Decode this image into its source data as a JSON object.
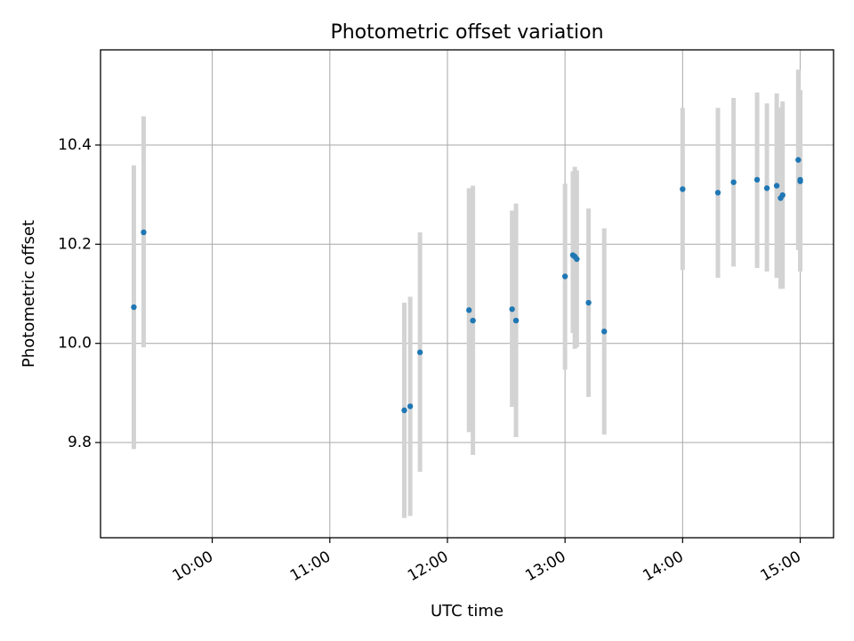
{
  "chart_data": {
    "type": "scatter",
    "title": "Photometric offset variation",
    "xlabel": "UTC time",
    "ylabel": "Photometric offset",
    "xlim": [
      "09:03",
      "15:17"
    ],
    "ylim": [
      9.608,
      10.592
    ],
    "x_ticks": [
      "10:00",
      "11:00",
      "12:00",
      "13:00",
      "14:00",
      "15:00"
    ],
    "y_ticks": [
      9.8,
      10.0,
      10.2,
      10.4
    ],
    "grid": true,
    "x_tick_rotation": "30°",
    "points": [
      {
        "x": "09:20",
        "y": 10.073,
        "lo": 9.787,
        "hi": 10.359
      },
      {
        "x": "09:25",
        "y": 10.224,
        "lo": 9.992,
        "hi": 10.458
      },
      {
        "x": "11:38",
        "y": 9.865,
        "lo": 9.648,
        "hi": 10.082
      },
      {
        "x": "11:41",
        "y": 9.873,
        "lo": 9.652,
        "hi": 10.094
      },
      {
        "x": "11:46",
        "y": 9.982,
        "lo": 9.741,
        "hi": 10.224
      },
      {
        "x": "12:11",
        "y": 10.067,
        "lo": 9.821,
        "hi": 10.313
      },
      {
        "x": "12:13",
        "y": 10.046,
        "lo": 9.775,
        "hi": 10.318
      },
      {
        "x": "12:33",
        "y": 10.069,
        "lo": 9.872,
        "hi": 10.268
      },
      {
        "x": "12:35",
        "y": 10.046,
        "lo": 9.811,
        "hi": 10.282
      },
      {
        "x": "13:00",
        "y": 10.135,
        "lo": 9.947,
        "hi": 10.322
      },
      {
        "x": "13:04",
        "y": 10.178,
        "lo": 10.021,
        "hi": 10.347
      },
      {
        "x": "13:05",
        "y": 10.175,
        "lo": 9.989,
        "hi": 10.356
      },
      {
        "x": "13:06",
        "y": 10.17,
        "lo": 9.992,
        "hi": 10.349
      },
      {
        "x": "13:12",
        "y": 10.082,
        "lo": 9.892,
        "hi": 10.272
      },
      {
        "x": "13:20",
        "y": 10.024,
        "lo": 9.816,
        "hi": 10.232
      },
      {
        "x": "14:00",
        "y": 10.311,
        "lo": 10.148,
        "hi": 10.475
      },
      {
        "x": "14:18",
        "y": 10.304,
        "lo": 10.132,
        "hi": 10.475
      },
      {
        "x": "14:26",
        "y": 10.325,
        "lo": 10.155,
        "hi": 10.495
      },
      {
        "x": "14:38",
        "y": 10.33,
        "lo": 10.152,
        "hi": 10.506
      },
      {
        "x": "14:43",
        "y": 10.313,
        "lo": 10.145,
        "hi": 10.484
      },
      {
        "x": "14:48",
        "y": 10.318,
        "lo": 10.132,
        "hi": 10.504
      },
      {
        "x": "14:50",
        "y": 10.293,
        "lo": 10.11,
        "hi": 10.476
      },
      {
        "x": "14:51",
        "y": 10.299,
        "lo": 10.11,
        "hi": 10.488
      },
      {
        "x": "14:59",
        "y": 10.37,
        "lo": 10.188,
        "hi": 10.552
      },
      {
        "x": "15:00",
        "y": 10.327,
        "lo": 10.145,
        "hi": 10.511
      },
      {
        "x": "15:00",
        "y": 10.33,
        "lo": 10.15,
        "hi": 10.51
      }
    ],
    "colors": {
      "marker": "#1f77b4",
      "errorbar": "#d3d3d3",
      "grid": "#b0b0b0"
    }
  }
}
